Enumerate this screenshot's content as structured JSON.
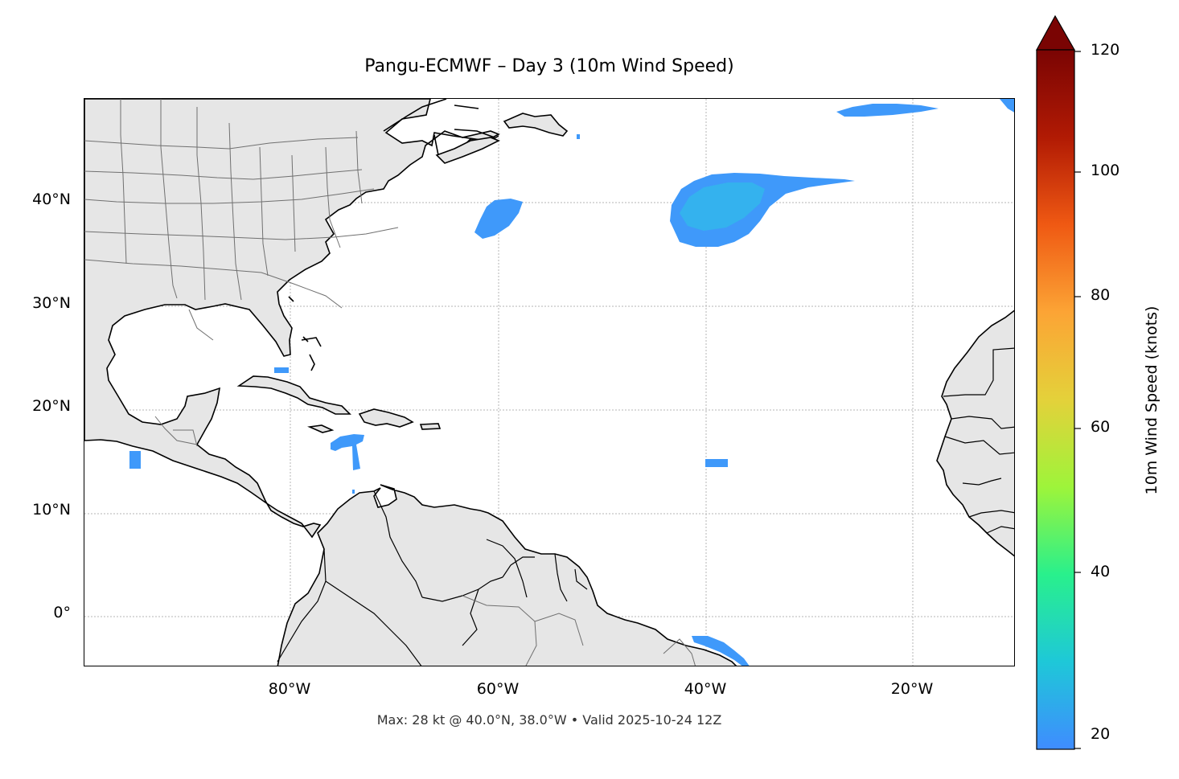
{
  "title": "Pangu-ECMWF – Day 3 (10m Wind Speed)",
  "caption": "Max: 28 kt @ 40.0°N, 38.0°W • Valid 2025-10-24 12Z",
  "axes": {
    "lat_labels": [
      "40°N",
      "30°N",
      "20°N",
      "10°N",
      "0°"
    ],
    "lon_labels": [
      "80°W",
      "60°W",
      "40°W",
      "20°W"
    ]
  },
  "colorbar": {
    "label": "10m Wind Speed (knots)",
    "ticks": [
      "20",
      "40",
      "60",
      "80",
      "100",
      "120"
    ],
    "min": 20,
    "max": 120,
    "extend": "max",
    "colors": [
      "#3f8cff",
      "#1ec8d8",
      "#29f08c",
      "#9ef43a",
      "#e4d13a",
      "#fca435",
      "#ef5913",
      "#b11a04",
      "#7a0403"
    ]
  },
  "map": {
    "land_color": "#e6e6e6",
    "coast_color": "#000000",
    "border_color": "#707070",
    "wind_color": "#3f99fa",
    "wind_core_color": "#34b2ee"
  },
  "max_point": {
    "value_kt": 28,
    "lat": 40.0,
    "lon": -38.0
  }
}
